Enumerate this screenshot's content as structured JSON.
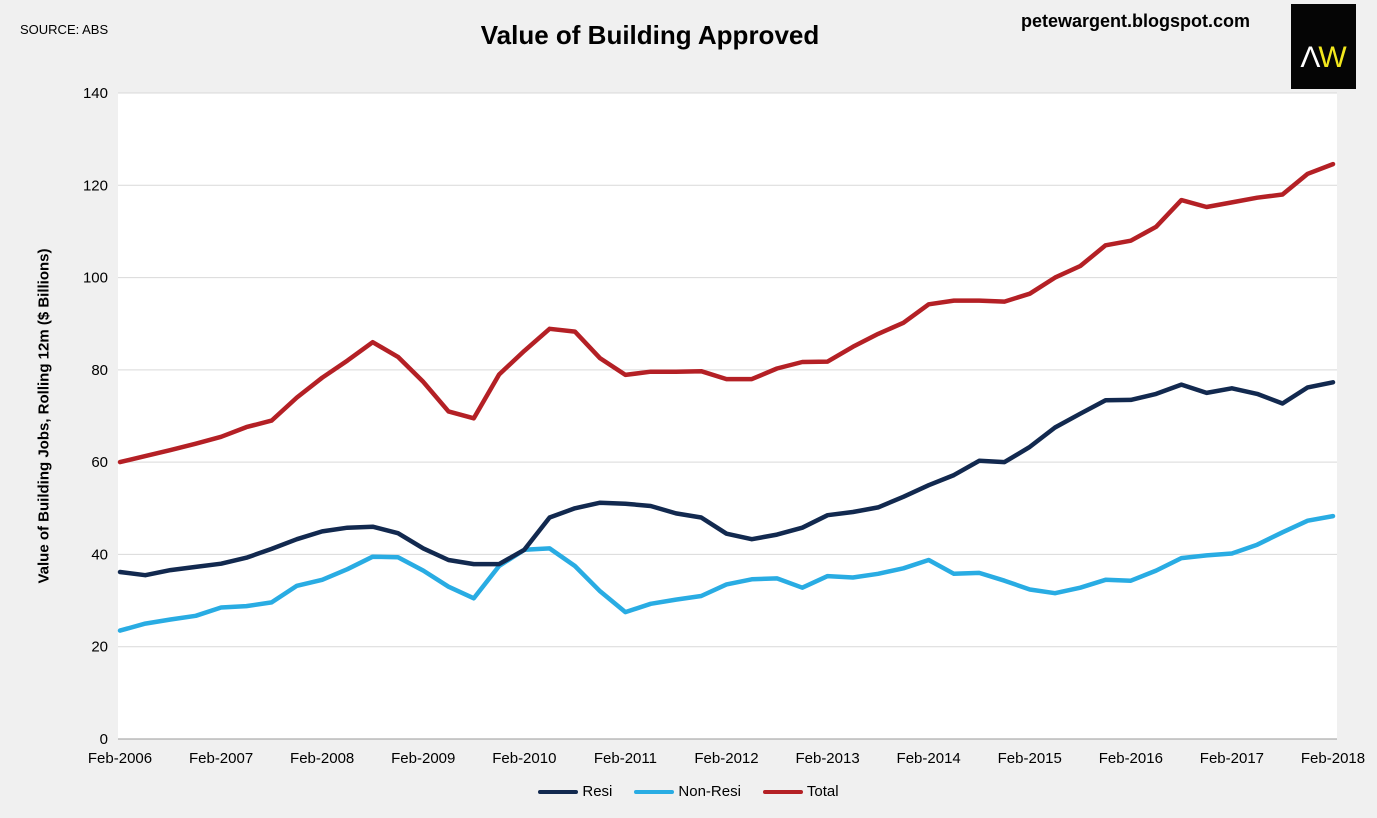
{
  "header": {
    "source_label": "SOURCE: ABS",
    "title": "Value of Building Approved",
    "website": "petewargent.blogspot.com",
    "logo_letter_1": "Λ",
    "logo_letter_2": "W"
  },
  "colors": {
    "background": "#f0f0f0",
    "plot_background": "#ffffff",
    "gridline": "#d9d9d9",
    "axis_line": "#9a9a9a",
    "resi": "#12294f",
    "non_resi": "#29ace3",
    "total": "#b42025",
    "logo_background": "#050505",
    "logo_letter_1_color": "#ffffff",
    "logo_letter_2_color": "#f2e71d"
  },
  "chart_data": {
    "type": "line",
    "title": "Value of Building Approved",
    "xlabel": "",
    "ylabel": "Value of Building Jobs, Rolling 12m ($ Billions)",
    "ylim": [
      0,
      140
    ],
    "yticks": [
      0,
      20,
      40,
      60,
      80,
      100,
      120,
      140
    ],
    "grid": "horizontal",
    "legend_position": "bottom",
    "xtick_every": 4,
    "xticks": [
      "Feb-2006",
      "Feb-2007",
      "Feb-2008",
      "Feb-2009",
      "Feb-2010",
      "Feb-2011",
      "Feb-2012",
      "Feb-2013",
      "Feb-2014",
      "Feb-2015",
      "Feb-2016",
      "Feb-2017",
      "Feb-2018"
    ],
    "categories": [
      "Feb-2006",
      "May-2006",
      "Aug-2006",
      "Nov-2006",
      "Feb-2007",
      "May-2007",
      "Aug-2007",
      "Nov-2007",
      "Feb-2008",
      "May-2008",
      "Aug-2008",
      "Nov-2008",
      "Feb-2009",
      "May-2009",
      "Aug-2009",
      "Nov-2009",
      "Feb-2010",
      "May-2010",
      "Aug-2010",
      "Nov-2010",
      "Feb-2011",
      "May-2011",
      "Aug-2011",
      "Nov-2011",
      "Feb-2012",
      "May-2012",
      "Aug-2012",
      "Nov-2012",
      "Feb-2013",
      "May-2013",
      "Aug-2013",
      "Nov-2013",
      "Feb-2014",
      "May-2014",
      "Aug-2014",
      "Nov-2014",
      "Feb-2015",
      "May-2015",
      "Aug-2015",
      "Nov-2015",
      "Feb-2016",
      "May-2016",
      "Aug-2016",
      "Nov-2016",
      "Feb-2017",
      "May-2017",
      "Aug-2017",
      "Nov-2017",
      "Feb-2018"
    ],
    "series": [
      {
        "name": "Non-Resi",
        "color_key": "non_resi",
        "values": [
          23.5,
          25.0,
          25.9,
          26.7,
          28.5,
          28.8,
          29.6,
          33.2,
          34.5,
          36.8,
          39.5,
          39.4,
          36.5,
          33.0,
          30.5,
          37.5,
          41.0,
          41.3,
          37.5,
          32.0,
          27.5,
          29.3,
          30.2,
          31.0,
          33.5,
          34.6,
          34.8,
          32.8,
          35.3,
          35.0,
          35.8,
          37.0,
          38.8,
          35.8,
          36.0,
          34.3,
          32.4,
          31.6,
          32.8,
          34.5,
          34.3,
          36.5,
          39.2,
          39.8,
          40.2,
          42.1,
          44.8,
          47.3,
          48.3
        ]
      },
      {
        "name": "Resi",
        "color_key": "resi",
        "values": [
          36.2,
          35.5,
          36.6,
          37.3,
          38.0,
          39.3,
          41.2,
          43.3,
          45.0,
          45.8,
          46.0,
          44.6,
          41.3,
          38.8,
          37.9,
          37.9,
          41.0,
          48.0,
          50.0,
          51.2,
          51.0,
          50.5,
          48.9,
          48.0,
          44.5,
          43.3,
          44.3,
          45.8,
          48.5,
          49.2,
          50.2,
          52.5,
          55.0,
          57.2,
          60.3,
          60.0,
          63.3,
          67.5,
          70.5,
          73.4,
          73.5,
          74.8,
          76.8,
          75.0,
          76.0,
          74.8,
          72.7,
          76.2,
          77.3
        ]
      },
      {
        "name": "Total",
        "color_key": "total",
        "values": [
          60.0,
          61.3,
          62.6,
          64.0,
          65.5,
          67.6,
          69.0,
          74.0,
          78.3,
          82.0,
          86.0,
          82.8,
          77.4,
          71.0,
          69.5,
          79.0,
          84.1,
          88.9,
          88.3,
          82.5,
          78.9,
          79.6,
          79.6,
          79.7,
          78.0,
          78.0,
          80.3,
          81.7,
          81.8,
          85.0,
          87.8,
          90.2,
          94.2,
          95.0,
          95.0,
          94.8,
          96.5,
          100.0,
          102.5,
          107.0,
          108.0,
          111.0,
          116.8,
          115.3,
          116.3,
          117.3,
          118.0,
          122.5,
          124.6
        ]
      }
    ],
    "legend_order": [
      "Resi",
      "Non-Resi",
      "Total"
    ]
  }
}
